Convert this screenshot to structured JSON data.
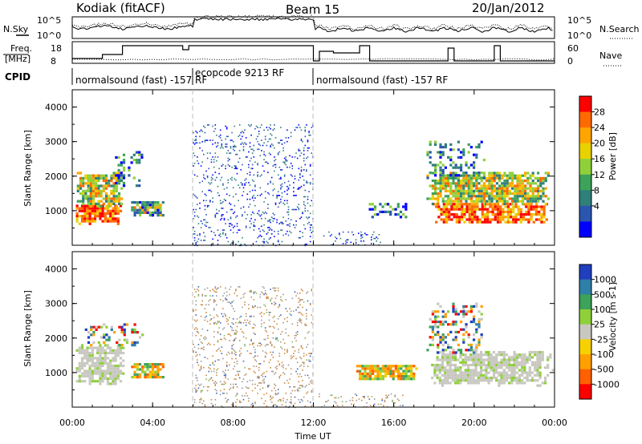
{
  "header": {
    "radar": "Kodiak (fitACF)",
    "beam": "Beam 15",
    "date": "20/Jan/2012"
  },
  "top_panels": {
    "nsky_label": "N.Sky",
    "nsearch_label": "N.Search",
    "noise_ticks": [
      "10^5",
      "10^0"
    ],
    "freq_label_1": "Freq.",
    "freq_label_2": "[MHz]",
    "freq_ticks": [
      "18",
      "8"
    ],
    "nave_label": "Nave",
    "nave_ticks": [
      "60",
      "0"
    ],
    "cpid_label": "CPID"
  },
  "cpid_segments": [
    {
      "start_hour": 0,
      "end_hour": 6,
      "label": "normalsound (fast) -157 RF"
    },
    {
      "start_hour": 6,
      "end_hour": 12,
      "label": "ecopcode 9213 RF"
    },
    {
      "start_hour": 12,
      "end_hour": 24,
      "label": "normalsound (fast) -157 RF"
    }
  ],
  "chart_data": [
    {
      "type": "heatmap",
      "panel": "power",
      "ylabel": "Slant Range [km]",
      "ylim": [
        0,
        4500
      ],
      "yticks": [
        "1000",
        "2000",
        "3000",
        "4000"
      ],
      "xlim": [
        0,
        24
      ],
      "colorbar_label": "Power [dB]",
      "colorbar_ticks": [
        "28",
        "24",
        "20",
        "16",
        "12",
        "8",
        "4"
      ],
      "colorbar_colors": [
        "#ff0000",
        "#ff6a00",
        "#ffa500",
        "#e8d200",
        "#8fd03a",
        "#3da25a",
        "#2f7f7a",
        "#2a56b0",
        "#0000ff"
      ],
      "regions": [
        {
          "t0": 0.05,
          "t1": 2.45,
          "r0": 650,
          "r1": 1250,
          "level": "high"
        },
        {
          "t0": 0.1,
          "t1": 2.5,
          "r0": 1100,
          "r1": 2200,
          "level": "mid"
        },
        {
          "t0": 2.8,
          "t1": 4.6,
          "r0": 850,
          "r1": 1350,
          "level": "mixed"
        },
        {
          "t0": 2.0,
          "t1": 3.5,
          "r0": 1700,
          "r1": 2800,
          "level": "low"
        },
        {
          "t0": 6.0,
          "t1": 12.0,
          "r0": 0,
          "r1": 3500,
          "level": "speckle"
        },
        {
          "t0": 12.3,
          "t1": 15.5,
          "r0": 0,
          "r1": 400,
          "level": "speckle"
        },
        {
          "t0": 14.5,
          "t1": 16.8,
          "r0": 800,
          "r1": 1300,
          "level": "low"
        },
        {
          "t0": 17.8,
          "t1": 23.9,
          "r0": 650,
          "r1": 1300,
          "level": "high"
        },
        {
          "t0": 17.5,
          "t1": 23.9,
          "r0": 1200,
          "r1": 2200,
          "level": "mid"
        },
        {
          "t0": 17.5,
          "t1": 20.5,
          "r0": 1900,
          "r1": 3100,
          "level": "low"
        }
      ]
    },
    {
      "type": "heatmap",
      "panel": "velocity",
      "xlabel": "Time UT",
      "ylabel": "Slant Range [km]",
      "ylim": [
        0,
        4500
      ],
      "yticks": [
        "1000",
        "2000",
        "3000",
        "4000"
      ],
      "xlim": [
        0,
        24
      ],
      "xticks": [
        "00:00",
        "04:00",
        "08:00",
        "12:00",
        "16:00",
        "20:00",
        "00:00"
      ],
      "colorbar_label": "Velocity [m s-1]",
      "colorbar_ticks": [
        "1000",
        "500",
        "100",
        "25",
        "-25",
        "-100",
        "-500",
        "-1000"
      ],
      "colorbar_colors": [
        "#1f3fbf",
        "#2f7fa8",
        "#3da25a",
        "#8fd03a",
        "#c8c8c0",
        "#f7d000",
        "#ffa000",
        "#ff6000",
        "#ff0000"
      ],
      "regions": [
        {
          "t0": 0.05,
          "t1": 2.6,
          "r0": 650,
          "r1": 1900,
          "level": "ground"
        },
        {
          "t0": 0.5,
          "t1": 3.5,
          "r0": 1800,
          "r1": 2500,
          "level": "scatter"
        },
        {
          "t0": 2.8,
          "t1": 4.6,
          "r0": 850,
          "r1": 1350,
          "level": "warm"
        },
        {
          "t0": 6.0,
          "t1": 12.0,
          "r0": 0,
          "r1": 3500,
          "level": "speckle"
        },
        {
          "t0": 12.2,
          "t1": 16.5,
          "r0": 0,
          "r1": 400,
          "level": "warmspeckle"
        },
        {
          "t0": 14.0,
          "t1": 17.2,
          "r0": 800,
          "r1": 1300,
          "level": "warm"
        },
        {
          "t0": 17.6,
          "t1": 23.9,
          "r0": 650,
          "r1": 1700,
          "level": "ground"
        },
        {
          "t0": 17.5,
          "t1": 20.5,
          "r0": 1500,
          "r1": 3100,
          "level": "scatter"
        }
      ]
    }
  ]
}
